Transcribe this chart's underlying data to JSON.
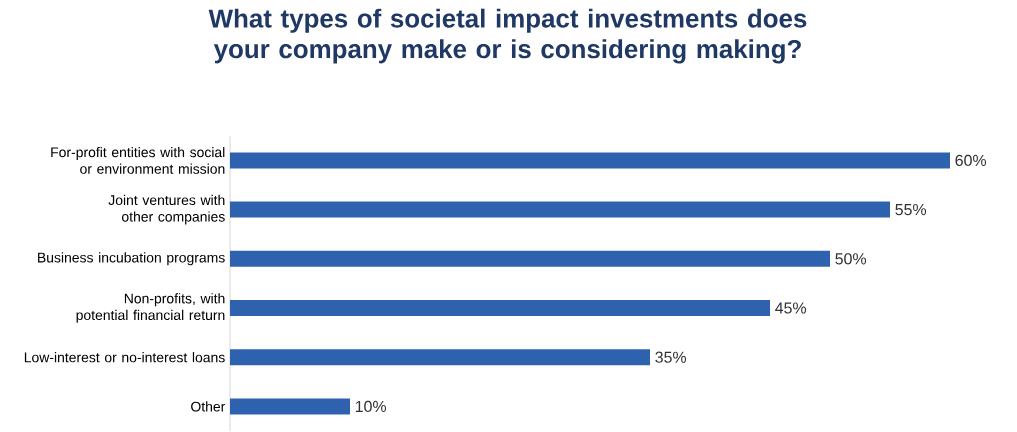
{
  "chart_data": {
    "type": "bar",
    "orientation": "horizontal",
    "title": "What types of societal impact investments does your company make or is considering making?",
    "categories": [
      "For-profit entities with social or environment mission",
      "Joint ventures with other companies",
      "Business incubation programs",
      "Non-profits, with potential financial return",
      "Low-interest or no-interest loans",
      "Other"
    ],
    "values": [
      60,
      55,
      50,
      45,
      35,
      10
    ],
    "value_labels": [
      "60%",
      "55%",
      "50%",
      "45%",
      "35%",
      "10%"
    ],
    "color": "#2e62ae"
  }
}
